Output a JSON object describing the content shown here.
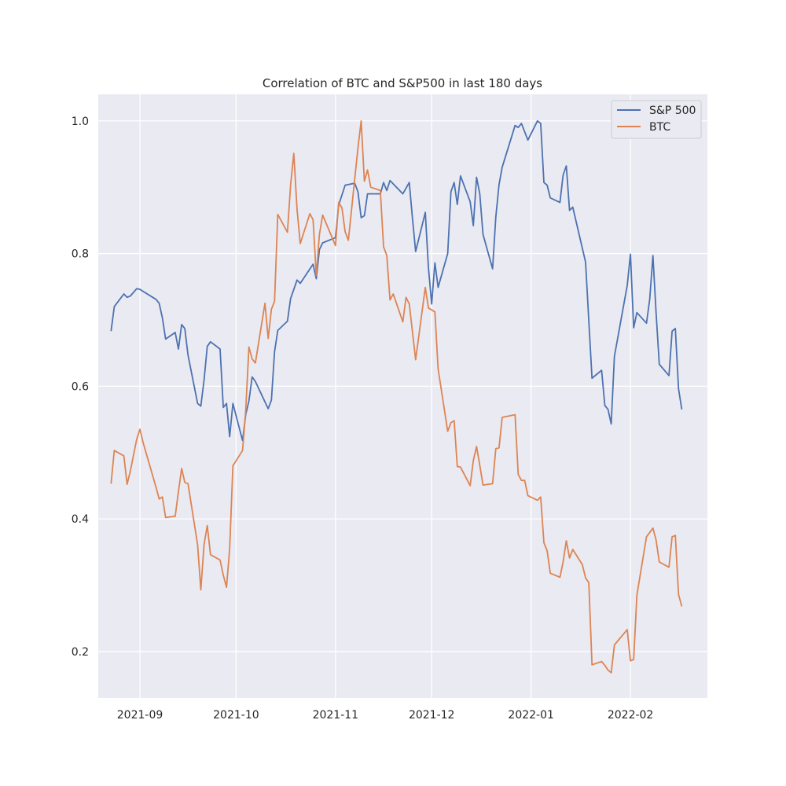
{
  "chart_data": {
    "type": "line",
    "title": "Correlation of BTC and S&P500 in last 180 days",
    "xlabel": "",
    "ylabel": "",
    "x_axis": "date",
    "xlim": [
      "2021-08-19",
      "2022-02-25"
    ],
    "ylim": [
      0.13,
      1.04
    ],
    "x_ticks": [
      {
        "date": "2021-09-01",
        "label": "2021-09"
      },
      {
        "date": "2021-10-01",
        "label": "2021-10"
      },
      {
        "date": "2021-11-01",
        "label": "2021-11"
      },
      {
        "date": "2021-12-01",
        "label": "2021-12"
      },
      {
        "date": "2022-01-01",
        "label": "2022-01"
      },
      {
        "date": "2022-02-01",
        "label": "2022-02"
      }
    ],
    "y_ticks": [
      {
        "value": 0.2,
        "label": "0.2"
      },
      {
        "value": 0.4,
        "label": "0.4"
      },
      {
        "value": 0.6,
        "label": "0.6"
      },
      {
        "value": 0.8,
        "label": "0.8"
      },
      {
        "value": 1.0,
        "label": "1.0"
      }
    ],
    "grid": true,
    "legend_position": "top-right",
    "series": [
      {
        "name": "S&P 500",
        "color": "#4c72b0",
        "points": [
          [
            "2021-08-23",
            0.683
          ],
          [
            "2021-08-24",
            0.72
          ],
          [
            "2021-08-27",
            0.739
          ],
          [
            "2021-08-28",
            0.734
          ],
          [
            "2021-08-29",
            0.736
          ],
          [
            "2021-08-31",
            0.747
          ],
          [
            "2021-09-01",
            0.746
          ],
          [
            "2021-09-02",
            0.743
          ],
          [
            "2021-09-06",
            0.731
          ],
          [
            "2021-09-07",
            0.725
          ],
          [
            "2021-09-08",
            0.703
          ],
          [
            "2021-09-09",
            0.671
          ],
          [
            "2021-09-12",
            0.681
          ],
          [
            "2021-09-13",
            0.656
          ],
          [
            "2021-09-14",
            0.693
          ],
          [
            "2021-09-15",
            0.687
          ],
          [
            "2021-09-16",
            0.647
          ],
          [
            "2021-09-19",
            0.574
          ],
          [
            "2021-09-20",
            0.57
          ],
          [
            "2021-09-21",
            0.609
          ],
          [
            "2021-09-22",
            0.66
          ],
          [
            "2021-09-23",
            0.667
          ],
          [
            "2021-09-26",
            0.656
          ],
          [
            "2021-09-27",
            0.568
          ],
          [
            "2021-09-28",
            0.574
          ],
          [
            "2021-09-29",
            0.524
          ],
          [
            "2021-09-30",
            0.574
          ],
          [
            "2021-10-03",
            0.518
          ],
          [
            "2021-10-04",
            0.557
          ],
          [
            "2021-10-05",
            0.578
          ],
          [
            "2021-10-06",
            0.614
          ],
          [
            "2021-10-07",
            0.607
          ],
          [
            "2021-10-11",
            0.566
          ],
          [
            "2021-10-12",
            0.579
          ],
          [
            "2021-10-13",
            0.652
          ],
          [
            "2021-10-14",
            0.684
          ],
          [
            "2021-10-17",
            0.698
          ],
          [
            "2021-10-18",
            0.732
          ],
          [
            "2021-10-20",
            0.76
          ],
          [
            "2021-10-21",
            0.755
          ],
          [
            "2021-10-25",
            0.784
          ],
          [
            "2021-10-26",
            0.762
          ],
          [
            "2021-10-27",
            0.806
          ],
          [
            "2021-10-28",
            0.816
          ],
          [
            "2021-11-01",
            0.824
          ],
          [
            "2021-11-02",
            0.873
          ],
          [
            "2021-11-04",
            0.903
          ],
          [
            "2021-11-07",
            0.906
          ],
          [
            "2021-11-08",
            0.893
          ],
          [
            "2021-11-09",
            0.854
          ],
          [
            "2021-11-10",
            0.857
          ],
          [
            "2021-11-11",
            0.89
          ],
          [
            "2021-11-15",
            0.89
          ],
          [
            "2021-11-16",
            0.907
          ],
          [
            "2021-11-17",
            0.895
          ],
          [
            "2021-11-18",
            0.91
          ],
          [
            "2021-11-22",
            0.89
          ],
          [
            "2021-11-24",
            0.907
          ],
          [
            "2021-11-25",
            0.854
          ],
          [
            "2021-11-26",
            0.803
          ],
          [
            "2021-11-29",
            0.862
          ],
          [
            "2021-11-30",
            0.778
          ],
          [
            "2021-12-01",
            0.724
          ],
          [
            "2021-12-02",
            0.786
          ],
          [
            "2021-12-03",
            0.749
          ],
          [
            "2021-12-06",
            0.8
          ],
          [
            "2021-12-07",
            0.893
          ],
          [
            "2021-12-08",
            0.907
          ],
          [
            "2021-12-09",
            0.874
          ],
          [
            "2021-12-10",
            0.917
          ],
          [
            "2021-12-13",
            0.878
          ],
          [
            "2021-12-14",
            0.842
          ],
          [
            "2021-12-15",
            0.915
          ],
          [
            "2021-12-16",
            0.89
          ],
          [
            "2021-12-17",
            0.829
          ],
          [
            "2021-12-20",
            0.777
          ],
          [
            "2021-12-21",
            0.855
          ],
          [
            "2021-12-22",
            0.904
          ],
          [
            "2021-12-23",
            0.93
          ],
          [
            "2021-12-27",
            0.993
          ],
          [
            "2021-12-28",
            0.99
          ],
          [
            "2021-12-29",
            0.996
          ],
          [
            "2021-12-31",
            0.971
          ],
          [
            "2022-01-03",
            1.0
          ],
          [
            "2022-01-04",
            0.996
          ],
          [
            "2022-01-05",
            0.907
          ],
          [
            "2022-01-06",
            0.903
          ],
          [
            "2022-01-07",
            0.884
          ],
          [
            "2022-01-10",
            0.877
          ],
          [
            "2022-01-11",
            0.918
          ],
          [
            "2022-01-12",
            0.932
          ],
          [
            "2022-01-13",
            0.865
          ],
          [
            "2022-01-14",
            0.87
          ],
          [
            "2022-01-18",
            0.787
          ],
          [
            "2022-01-19",
            0.699
          ],
          [
            "2022-01-20",
            0.612
          ],
          [
            "2022-01-23",
            0.624
          ],
          [
            "2022-01-24",
            0.571
          ],
          [
            "2022-01-25",
            0.565
          ],
          [
            "2022-01-26",
            0.543
          ],
          [
            "2022-01-27",
            0.645
          ],
          [
            "2022-01-31",
            0.752
          ],
          [
            "2022-02-01",
            0.799
          ],
          [
            "2022-02-02",
            0.688
          ],
          [
            "2022-02-03",
            0.711
          ],
          [
            "2022-02-06",
            0.695
          ],
          [
            "2022-02-07",
            0.731
          ],
          [
            "2022-02-08",
            0.797
          ],
          [
            "2022-02-09",
            0.711
          ],
          [
            "2022-02-10",
            0.633
          ],
          [
            "2022-02-13",
            0.616
          ],
          [
            "2022-02-14",
            0.683
          ],
          [
            "2022-02-15",
            0.687
          ],
          [
            "2022-02-16",
            0.596
          ],
          [
            "2022-02-17",
            0.565
          ]
        ]
      },
      {
        "name": "BTC",
        "color": "#dd8452",
        "points": [
          [
            "2021-08-23",
            0.453
          ],
          [
            "2021-08-24",
            0.503
          ],
          [
            "2021-08-27",
            0.495
          ],
          [
            "2021-08-28",
            0.452
          ],
          [
            "2021-08-29",
            0.472
          ],
          [
            "2021-08-31",
            0.52
          ],
          [
            "2021-09-01",
            0.535
          ],
          [
            "2021-09-02",
            0.515
          ],
          [
            "2021-09-06",
            0.448
          ],
          [
            "2021-09-07",
            0.43
          ],
          [
            "2021-09-08",
            0.433
          ],
          [
            "2021-09-09",
            0.402
          ],
          [
            "2021-09-12",
            0.404
          ],
          [
            "2021-09-13",
            0.441
          ],
          [
            "2021-09-14",
            0.476
          ],
          [
            "2021-09-15",
            0.455
          ],
          [
            "2021-09-16",
            0.453
          ],
          [
            "2021-09-19",
            0.361
          ],
          [
            "2021-09-20",
            0.293
          ],
          [
            "2021-09-21",
            0.361
          ],
          [
            "2021-09-22",
            0.39
          ],
          [
            "2021-09-23",
            0.346
          ],
          [
            "2021-09-26",
            0.338
          ],
          [
            "2021-09-27",
            0.315
          ],
          [
            "2021-09-28",
            0.297
          ],
          [
            "2021-09-29",
            0.355
          ],
          [
            "2021-09-30",
            0.48
          ],
          [
            "2021-10-03",
            0.503
          ],
          [
            "2021-10-04",
            0.563
          ],
          [
            "2021-10-05",
            0.659
          ],
          [
            "2021-10-06",
            0.641
          ],
          [
            "2021-10-07",
            0.635
          ],
          [
            "2021-10-10",
            0.725
          ],
          [
            "2021-10-11",
            0.672
          ],
          [
            "2021-10-12",
            0.716
          ],
          [
            "2021-10-13",
            0.728
          ],
          [
            "2021-10-14",
            0.859
          ],
          [
            "2021-10-17",
            0.832
          ],
          [
            "2021-10-18",
            0.903
          ],
          [
            "2021-10-19",
            0.951
          ],
          [
            "2021-10-20",
            0.867
          ],
          [
            "2021-10-21",
            0.815
          ],
          [
            "2021-10-24",
            0.86
          ],
          [
            "2021-10-25",
            0.851
          ],
          [
            "2021-10-26",
            0.767
          ],
          [
            "2021-10-27",
            0.829
          ],
          [
            "2021-10-28",
            0.858
          ],
          [
            "2021-11-01",
            0.812
          ],
          [
            "2021-11-02",
            0.877
          ],
          [
            "2021-11-03",
            0.869
          ],
          [
            "2021-11-04",
            0.833
          ],
          [
            "2021-11-05",
            0.82
          ],
          [
            "2021-11-08",
            0.959
          ],
          [
            "2021-11-09",
            1.0
          ],
          [
            "2021-11-10",
            0.909
          ],
          [
            "2021-11-11",
            0.926
          ],
          [
            "2021-11-12",
            0.9
          ],
          [
            "2021-11-15",
            0.895
          ],
          [
            "2021-11-16",
            0.81
          ],
          [
            "2021-11-17",
            0.797
          ],
          [
            "2021-11-18",
            0.73
          ],
          [
            "2021-11-19",
            0.739
          ],
          [
            "2021-11-22",
            0.697
          ],
          [
            "2021-11-23",
            0.734
          ],
          [
            "2021-11-24",
            0.724
          ],
          [
            "2021-11-26",
            0.64
          ],
          [
            "2021-11-29",
            0.749
          ],
          [
            "2021-11-30",
            0.718
          ],
          [
            "2021-12-02",
            0.712
          ],
          [
            "2021-12-03",
            0.626
          ],
          [
            "2021-12-06",
            0.532
          ],
          [
            "2021-12-07",
            0.545
          ],
          [
            "2021-12-08",
            0.548
          ],
          [
            "2021-12-09",
            0.479
          ],
          [
            "2021-12-10",
            0.478
          ],
          [
            "2021-12-13",
            0.45
          ],
          [
            "2021-12-14",
            0.488
          ],
          [
            "2021-12-15",
            0.509
          ],
          [
            "2021-12-16",
            0.481
          ],
          [
            "2021-12-17",
            0.451
          ],
          [
            "2021-12-20",
            0.453
          ],
          [
            "2021-12-21",
            0.506
          ],
          [
            "2021-12-22",
            0.507
          ],
          [
            "2021-12-23",
            0.553
          ],
          [
            "2021-12-27",
            0.557
          ],
          [
            "2021-12-28",
            0.467
          ],
          [
            "2021-12-29",
            0.458
          ],
          [
            "2021-12-30",
            0.458
          ],
          [
            "2021-12-31",
            0.435
          ],
          [
            "2022-01-03",
            0.428
          ],
          [
            "2022-01-04",
            0.433
          ],
          [
            "2022-01-05",
            0.364
          ],
          [
            "2022-01-06",
            0.352
          ],
          [
            "2022-01-07",
            0.318
          ],
          [
            "2022-01-10",
            0.312
          ],
          [
            "2022-01-11",
            0.335
          ],
          [
            "2022-01-12",
            0.367
          ],
          [
            "2022-01-13",
            0.341
          ],
          [
            "2022-01-14",
            0.354
          ],
          [
            "2022-01-17",
            0.331
          ],
          [
            "2022-01-18",
            0.311
          ],
          [
            "2022-01-19",
            0.304
          ],
          [
            "2022-01-20",
            0.18
          ],
          [
            "2022-01-23",
            0.185
          ],
          [
            "2022-01-24",
            0.179
          ],
          [
            "2022-01-25",
            0.172
          ],
          [
            "2022-01-26",
            0.168
          ],
          [
            "2022-01-27",
            0.21
          ],
          [
            "2022-01-31",
            0.233
          ],
          [
            "2022-02-01",
            0.186
          ],
          [
            "2022-02-02",
            0.188
          ],
          [
            "2022-02-03",
            0.285
          ],
          [
            "2022-02-06",
            0.373
          ],
          [
            "2022-02-08",
            0.386
          ],
          [
            "2022-02-09",
            0.368
          ],
          [
            "2022-02-10",
            0.335
          ],
          [
            "2022-02-13",
            0.327
          ],
          [
            "2022-02-14",
            0.373
          ],
          [
            "2022-02-15",
            0.375
          ],
          [
            "2022-02-16",
            0.286
          ],
          [
            "2022-02-17",
            0.268
          ]
        ]
      }
    ]
  }
}
